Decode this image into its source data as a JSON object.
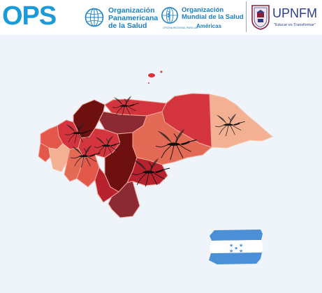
{
  "header": {
    "ops_logo": "OPS",
    "paho": {
      "line1": "Organización",
      "line2": "Panamericana",
      "line3": "de la Salud"
    },
    "who": {
      "line1": "Organización",
      "line2": "Mundial de la Salud",
      "region_prefix": "OFICINA REGIONAL PARA LAS",
      "region": "Américas"
    },
    "upnfm": {
      "name": "UPNFM",
      "motto": "\"Educar es Transformar\""
    }
  },
  "map": {
    "colors": {
      "darkest": "#6e1010",
      "dark": "#8c2a33",
      "crimson": "#b8222e",
      "red": "#d4343e",
      "medium": "#e3584a",
      "orange": "#e36a54",
      "light": "#ee9a7a",
      "palest": "#f4b092"
    },
    "icons": [
      "mosquito-icon"
    ]
  },
  "flag": {
    "stripe_color": "#4b8fd6",
    "center_color": "#ffffff",
    "stars": "★ ★\n★\n★ ★"
  }
}
